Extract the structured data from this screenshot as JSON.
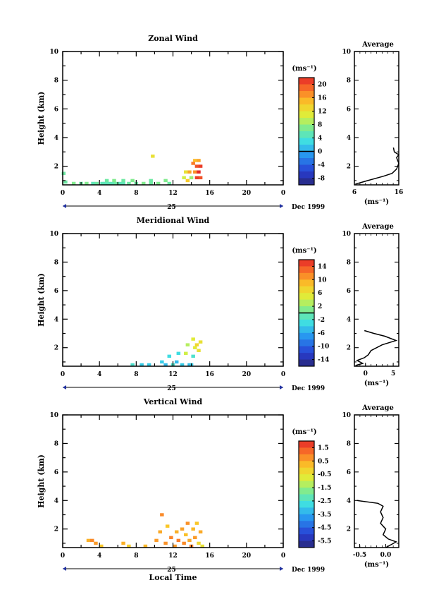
{
  "chart_data": [
    {
      "type": "heatmap",
      "title": "Zonal Wind",
      "xlabel": "",
      "ylabel": "Height (km)",
      "xlim": [
        0,
        24
      ],
      "ylim": [
        0.7,
        10
      ],
      "x_ticks": [
        "0",
        "4",
        "8",
        "12",
        "16",
        "20",
        "0"
      ],
      "y_ticks": [
        "2",
        "4",
        "6",
        "8",
        "10"
      ],
      "date_day": "25",
      "date_month_year": "Dec 1999",
      "colorbar": {
        "unit": "(ms⁻¹)",
        "labels": [
          "20",
          "16",
          "12",
          "8",
          "4",
          "0",
          "-4",
          "-8"
        ],
        "min": -10,
        "max": 22,
        "zero_line": 0
      },
      "cells": [
        {
          "x": 0.1,
          "y": 1.5,
          "v": 6
        },
        {
          "x": 0.3,
          "y": 0.9,
          "v": 6
        },
        {
          "x": 1.2,
          "y": 0.8,
          "v": 7
        },
        {
          "x": 2.0,
          "y": 0.8,
          "v": 6
        },
        {
          "x": 2.6,
          "y": 0.8,
          "v": 7
        },
        {
          "x": 3.3,
          "y": 0.8,
          "v": 5
        },
        {
          "x": 3.7,
          "y": 0.8,
          "v": 6
        },
        {
          "x": 4.3,
          "y": 0.8,
          "v": 5
        },
        {
          "x": 4.6,
          "y": 0.8,
          "v": 5
        },
        {
          "x": 5.0,
          "y": 0.8,
          "v": 5
        },
        {
          "x": 5.4,
          "y": 0.8,
          "v": 5
        },
        {
          "x": 5.8,
          "y": 0.8,
          "v": 6
        },
        {
          "x": 6.2,
          "y": 0.8,
          "v": 5
        },
        {
          "x": 6.6,
          "y": 0.8,
          "v": 5
        },
        {
          "x": 7.2,
          "y": 0.8,
          "v": 6
        },
        {
          "x": 8.0,
          "y": 0.8,
          "v": 6
        },
        {
          "x": 8.8,
          "y": 0.8,
          "v": 7
        },
        {
          "x": 9.6,
          "y": 0.8,
          "v": 6
        },
        {
          "x": 10.4,
          "y": 0.8,
          "v": 7
        },
        {
          "x": 11.6,
          "y": 0.8,
          "v": 6
        },
        {
          "x": 4.8,
          "y": 1.0,
          "v": 6
        },
        {
          "x": 5.6,
          "y": 1.0,
          "v": 7
        },
        {
          "x": 6.6,
          "y": 1.0,
          "v": 6
        },
        {
          "x": 7.6,
          "y": 1.0,
          "v": 7
        },
        {
          "x": 9.6,
          "y": 1.0,
          "v": 6
        },
        {
          "x": 11.2,
          "y": 1.0,
          "v": 7
        },
        {
          "x": 9.8,
          "y": 2.7,
          "v": 12
        },
        {
          "x": 13.2,
          "y": 1.2,
          "v": 10
        },
        {
          "x": 13.6,
          "y": 1.0,
          "v": 14
        },
        {
          "x": 13.8,
          "y": 1.6,
          "v": 16
        },
        {
          "x": 14.0,
          "y": 1.2,
          "v": 8
        },
        {
          "x": 14.2,
          "y": 2.2,
          "v": 18
        },
        {
          "x": 14.4,
          "y": 1.6,
          "v": 17
        },
        {
          "x": 14.6,
          "y": 1.2,
          "v": 21
        },
        {
          "x": 14.6,
          "y": 2.0,
          "v": 20
        },
        {
          "x": 14.8,
          "y": 1.6,
          "v": 22
        },
        {
          "x": 14.8,
          "y": 2.4,
          "v": 16
        },
        {
          "x": 15.0,
          "y": 1.2,
          "v": 20
        },
        {
          "x": 15.0,
          "y": 2.0,
          "v": 21
        },
        {
          "x": 14.4,
          "y": 2.4,
          "v": 15
        },
        {
          "x": 13.4,
          "y": 1.6,
          "v": 12
        }
      ],
      "average": {
        "title": "Average",
        "xlabel": "(ms⁻¹)",
        "xlim": [
          6,
          16
        ],
        "x_ticks": [
          "6",
          "16"
        ],
        "y_ticks": [
          "2",
          "4",
          "6",
          "8",
          "10"
        ],
        "profile": [
          [
            6.2,
            0.75
          ],
          [
            9,
            1.0
          ],
          [
            12.5,
            1.3
          ],
          [
            14.5,
            1.5
          ],
          [
            15.5,
            1.8
          ],
          [
            16,
            2.2
          ],
          [
            15.5,
            2.6
          ],
          [
            16,
            2.8
          ],
          [
            15,
            3.0
          ],
          [
            14.8,
            3.3
          ]
        ]
      }
    },
    {
      "type": "heatmap",
      "title": "Meridional Wind",
      "xlabel": "",
      "ylabel": "Height (km)",
      "xlim": [
        0,
        24
      ],
      "ylim": [
        0.7,
        10
      ],
      "x_ticks": [
        "0",
        "4",
        "8",
        "12",
        "16",
        "20",
        "0"
      ],
      "y_ticks": [
        "2",
        "4",
        "6",
        "8",
        "10"
      ],
      "date_day": "25",
      "date_month_year": "Dec 1999",
      "colorbar": {
        "unit": "(ms⁻¹)",
        "labels": [
          "14",
          "10",
          "6",
          "2",
          "-2",
          "-6",
          "-10",
          "-14"
        ],
        "min": -16,
        "max": 16,
        "zero_line": 0
      },
      "cells": [
        {
          "x": 7.6,
          "y": 0.8,
          "v": -2
        },
        {
          "x": 8.6,
          "y": 0.8,
          "v": -4
        },
        {
          "x": 9.4,
          "y": 0.8,
          "v": -4
        },
        {
          "x": 10.8,
          "y": 1.0,
          "v": -4
        },
        {
          "x": 11.2,
          "y": 0.8,
          "v": -5
        },
        {
          "x": 11.6,
          "y": 1.4,
          "v": -3
        },
        {
          "x": 12.0,
          "y": 0.8,
          "v": -2
        },
        {
          "x": 12.4,
          "y": 1.0,
          "v": -5
        },
        {
          "x": 12.6,
          "y": 1.6,
          "v": -3
        },
        {
          "x": 13.0,
          "y": 0.8,
          "v": -4
        },
        {
          "x": 13.4,
          "y": 1.6,
          "v": 4
        },
        {
          "x": 13.8,
          "y": 0.8,
          "v": -5
        },
        {
          "x": 14.0,
          "y": 0.8,
          "v": -4
        },
        {
          "x": 14.2,
          "y": 1.4,
          "v": -2
        },
        {
          "x": 14.4,
          "y": 2.0,
          "v": 5
        },
        {
          "x": 14.6,
          "y": 2.2,
          "v": 7
        },
        {
          "x": 14.8,
          "y": 1.8,
          "v": 6
        },
        {
          "x": 15.0,
          "y": 2.4,
          "v": 6
        },
        {
          "x": 14.2,
          "y": 2.6,
          "v": 5
        },
        {
          "x": 13.6,
          "y": 2.2,
          "v": 3
        }
      ],
      "average": {
        "title": "Average",
        "xlabel": "(ms⁻¹)",
        "xlim": [
          -2,
          6
        ],
        "x_ticks": [
          "0",
          "5"
        ],
        "y_ticks": [
          "2",
          "4",
          "6",
          "8",
          "10"
        ],
        "profile": [
          [
            -1.8,
            0.75
          ],
          [
            -0.5,
            0.9
          ],
          [
            -1.5,
            1.1
          ],
          [
            -0.2,
            1.3
          ],
          [
            0.5,
            1.5
          ],
          [
            1.0,
            1.8
          ],
          [
            3.0,
            2.2
          ],
          [
            5.5,
            2.5
          ],
          [
            3.5,
            2.8
          ],
          [
            1.5,
            3.0
          ],
          [
            -0.2,
            3.2
          ]
        ]
      }
    },
    {
      "type": "heatmap",
      "title": "Vertical Wind",
      "xlabel": "Local Time",
      "ylabel": "Height (km)",
      "xlim": [
        0,
        24
      ],
      "ylim": [
        0.7,
        10
      ],
      "x_ticks": [
        "0",
        "4",
        "8",
        "12",
        "16",
        "20",
        "0"
      ],
      "y_ticks": [
        "2",
        "4",
        "6",
        "8",
        "10"
      ],
      "date_day": "25",
      "date_month_year": "Dec 1999",
      "colorbar": {
        "unit": "(ms⁻¹)",
        "labels": [
          "1.5",
          "0.5",
          "-0.5",
          "-1.5",
          "-2.5",
          "-3.5",
          "-4.5",
          "-5.5"
        ],
        "min": -6.5,
        "max": 2.3,
        "zero_line": null
      },
      "cells": [
        {
          "x": 2.8,
          "y": 1.2,
          "v": 0.5
        },
        {
          "x": 3.2,
          "y": 1.2,
          "v": 1.0
        },
        {
          "x": 3.6,
          "y": 1.0,
          "v": 0.8
        },
        {
          "x": 4.2,
          "y": 0.8,
          "v": 0.2
        },
        {
          "x": 6.6,
          "y": 1.0,
          "v": 0.5
        },
        {
          "x": 7.2,
          "y": 0.8,
          "v": 0.0
        },
        {
          "x": 9.0,
          "y": 0.8,
          "v": 0.4
        },
        {
          "x": 10.2,
          "y": 1.2,
          "v": 0.8
        },
        {
          "x": 10.6,
          "y": 1.8,
          "v": 0.6
        },
        {
          "x": 10.8,
          "y": 3.0,
          "v": 1.0
        },
        {
          "x": 11.2,
          "y": 1.0,
          "v": 0.9
        },
        {
          "x": 11.4,
          "y": 2.2,
          "v": 0.2
        },
        {
          "x": 11.8,
          "y": 1.4,
          "v": 1.1
        },
        {
          "x": 12.2,
          "y": 0.8,
          "v": 0.8
        },
        {
          "x": 12.4,
          "y": 1.8,
          "v": 0.5
        },
        {
          "x": 12.6,
          "y": 1.2,
          "v": 1.2
        },
        {
          "x": 13.0,
          "y": 2.0,
          "v": 0.7
        },
        {
          "x": 13.2,
          "y": 1.0,
          "v": 1.0
        },
        {
          "x": 13.4,
          "y": 1.6,
          "v": 0.3
        },
        {
          "x": 13.6,
          "y": 2.4,
          "v": 0.9
        },
        {
          "x": 13.8,
          "y": 1.2,
          "v": 0.6
        },
        {
          "x": 14.0,
          "y": 0.8,
          "v": 1.1
        },
        {
          "x": 14.2,
          "y": 2.0,
          "v": 0.4
        },
        {
          "x": 14.4,
          "y": 1.4,
          "v": 0.8
        },
        {
          "x": 14.6,
          "y": 2.4,
          "v": 0.2
        },
        {
          "x": 14.8,
          "y": 1.0,
          "v": -0.2
        },
        {
          "x": 15.0,
          "y": 1.8,
          "v": 0.6
        },
        {
          "x": 15.2,
          "y": 0.8,
          "v": -0.5
        }
      ],
      "average": {
        "title": "Average",
        "xlabel": "(ms⁻¹)",
        "xlim": [
          -0.6,
          0.25
        ],
        "x_ticks": [
          "-0.5",
          "0.0"
        ],
        "y_ticks": [
          "2",
          "4",
          "6",
          "8",
          "10"
        ],
        "profile": [
          [
            0.0,
            0.7
          ],
          [
            0.1,
            0.9
          ],
          [
            0.2,
            1.1
          ],
          [
            0.05,
            1.3
          ],
          [
            -0.05,
            1.6
          ],
          [
            0.0,
            2.0
          ],
          [
            -0.1,
            2.4
          ],
          [
            -0.05,
            2.8
          ],
          [
            -0.1,
            3.2
          ],
          [
            -0.05,
            3.6
          ],
          [
            -0.15,
            3.8
          ],
          [
            -0.55,
            4.0
          ]
        ]
      }
    }
  ]
}
